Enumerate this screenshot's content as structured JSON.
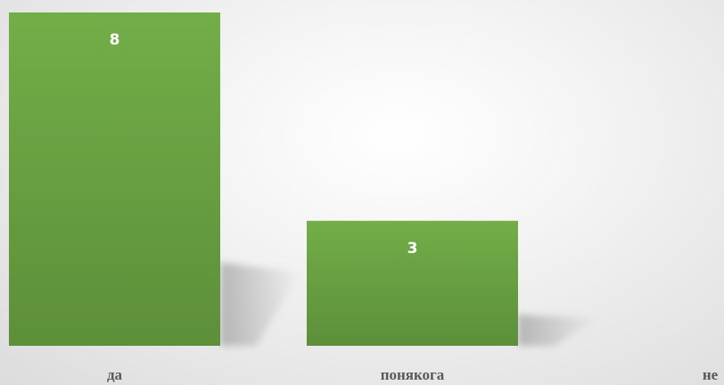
{
  "chart_data": {
    "type": "bar",
    "categories": [
      "да",
      "понякога",
      "не"
    ],
    "values": [
      8,
      3,
      0
    ],
    "data_labels": [
      "8",
      "3",
      ""
    ],
    "ylim": [
      0,
      8
    ],
    "grid": false,
    "legend": "none",
    "bar_color": "#6aa446"
  }
}
